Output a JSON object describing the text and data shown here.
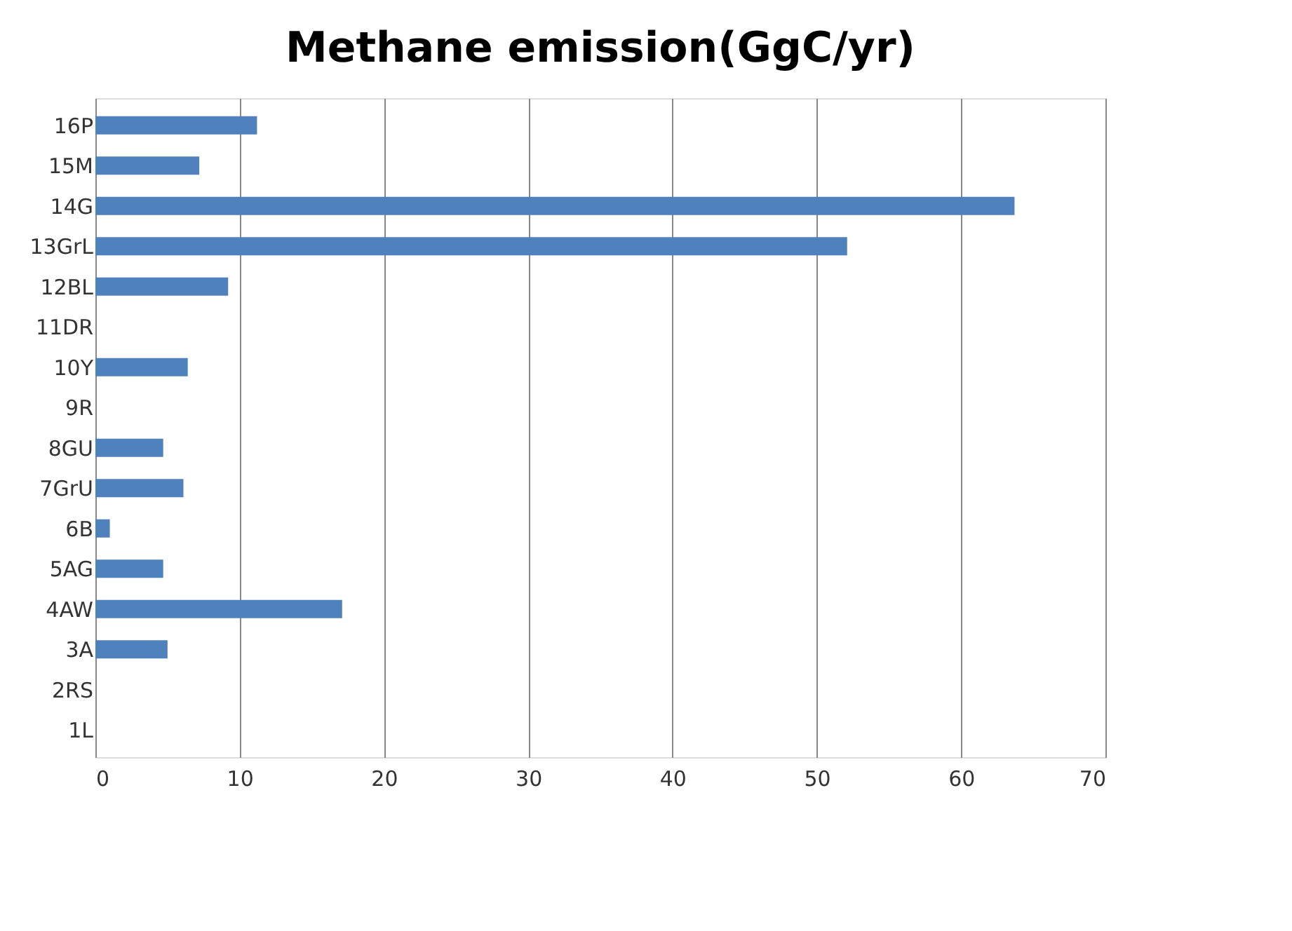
{
  "chart_data": {
    "type": "bar",
    "orientation": "horizontal",
    "title": "Methane emission(GgC/yr)",
    "categories": [
      "16P",
      "15M",
      "14G",
      "13GrL",
      "12BL",
      "11DR",
      "10Y",
      "9R",
      "8GU",
      "7GrU",
      "6B",
      "5AG",
      "4AW",
      "3A",
      "2RS",
      "1L"
    ],
    "values": [
      11.2,
      7.2,
      63.7,
      52.1,
      9.2,
      0,
      6.4,
      0,
      4.7,
      6.1,
      1.0,
      4.7,
      17.1,
      5.0,
      0,
      0
    ],
    "color": "#4f81bd",
    "xlim": [
      0,
      70
    ],
    "xticks": [
      0,
      10,
      20,
      30,
      40,
      50,
      60,
      70
    ],
    "grid": "x"
  }
}
